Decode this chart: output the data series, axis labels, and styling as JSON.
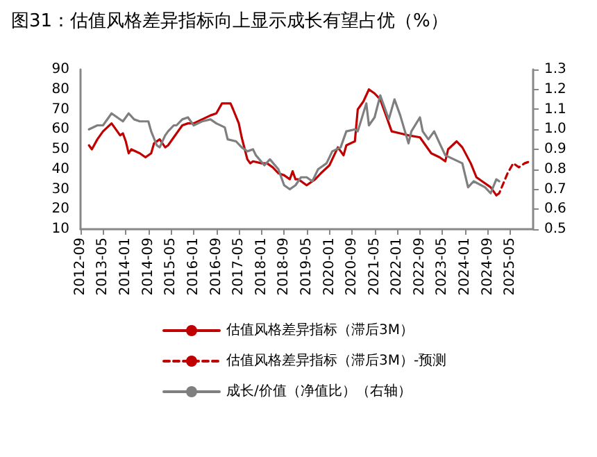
{
  "chart_data": {
    "type": "line",
    "title": "图31：估值风格差异指标向上显示成长有望占优（%）",
    "xlim": [
      "2012-09",
      "2026-01"
    ],
    "xticks": [
      "2012-09",
      "2013-05",
      "2014-01",
      "2014-09",
      "2015-05",
      "2016-01",
      "2016-09",
      "2017-05",
      "2018-01",
      "2018-09",
      "2019-05",
      "2020-01",
      "2020-09",
      "2021-05",
      "2022-01",
      "2022-09",
      "2023-05",
      "2024-01",
      "2024-09",
      "2025-05"
    ],
    "ylim": [
      10,
      90
    ],
    "yticks": [
      10,
      20,
      30,
      40,
      50,
      60,
      70,
      80,
      90
    ],
    "y2lim": [
      0.5,
      1.3
    ],
    "y2ticks": [
      0.5,
      0.6,
      0.7,
      0.8,
      0.9,
      {
        "value": 1,
        "label": "1.0"
      },
      1.1,
      1.2,
      1.3
    ],
    "grid": false,
    "legend": "bottom",
    "marker": "none",
    "series": [
      {
        "name": "估值风格差异指标（滞后3M）",
        "color": "#c00000",
        "line_style": "solid",
        "x": [
          "2012-12",
          "2013-01",
          "2013-03",
          "2013-05",
          "2013-08",
          "2013-09",
          "2013-11",
          "2013-12",
          "2014-01",
          "2014-02",
          "2014-03",
          "2014-06",
          "2014-08",
          "2014-10",
          "2014-11",
          "2015-01",
          "2015-03",
          "2015-04",
          "2015-06",
          "2015-09",
          "2015-11",
          "2016-01",
          "2016-04",
          "2016-07",
          "2016-09",
          "2016-11",
          "2017-02",
          "2017-03",
          "2017-05",
          "2017-06",
          "2017-08",
          "2017-09",
          "2017-10",
          "2018-01",
          "2018-03",
          "2018-05",
          "2018-07",
          "2018-09",
          "2018-11",
          "2018-12",
          "2019-01",
          "2019-02",
          "2019-05",
          "2019-08",
          "2019-10",
          "2020-01",
          "2020-04",
          "2020-06",
          "2020-07",
          "2020-10",
          "2020-11",
          "2021-01",
          "2021-03",
          "2021-05",
          "2021-07",
          "2021-09",
          "2021-11",
          "2022-02",
          "2022-05",
          "2022-09",
          "2023-01",
          "2023-04",
          "2023-06",
          "2023-07",
          "2023-10",
          "2023-12",
          "2024-03",
          "2024-05",
          "2024-07",
          "2024-10",
          "2024-12"
        ],
        "values": [
          52,
          50,
          55,
          59,
          63,
          61,
          57,
          58,
          54,
          48,
          50,
          48,
          46,
          48,
          53,
          55,
          51,
          52,
          56,
          62,
          63,
          63,
          65,
          67,
          68,
          73,
          73,
          70,
          63,
          56,
          45,
          43,
          44,
          43,
          43,
          41,
          38,
          37,
          35,
          39,
          35,
          35,
          32,
          35,
          38,
          42,
          51,
          47,
          52,
          54,
          70,
          74,
          80,
          78,
          75,
          67,
          59,
          58,
          57,
          56,
          48,
          46,
          44,
          50,
          54,
          51,
          43,
          36,
          34,
          31,
          27
        ]
      },
      {
        "name": "估值风格差异指标（滞后3M）-预测",
        "color": "#c00000",
        "line_style": "dashed",
        "x": [
          "2024-12",
          "2025-01",
          "2025-04",
          "2025-06",
          "2025-08",
          "2025-10",
          "2025-12"
        ],
        "values": [
          27,
          28,
          38,
          43,
          41,
          43,
          44
        ]
      },
      {
        "name": "成长/价值（净值比）（右轴）",
        "color": "#7f7f7f",
        "line_style": "solid",
        "axis": "y2",
        "x": [
          "2012-12",
          "2013-03",
          "2013-05",
          "2013-08",
          "2013-10",
          "2013-12",
          "2014-02",
          "2014-04",
          "2014-06",
          "2014-09",
          "2014-10",
          "2014-12",
          "2015-01",
          "2015-03",
          "2015-04",
          "2015-06",
          "2015-07",
          "2015-09",
          "2015-11",
          "2016-01",
          "2016-04",
          "2016-07",
          "2016-09",
          "2016-12",
          "2017-01",
          "2017-04",
          "2017-06",
          "2017-08",
          "2017-10",
          "2017-11",
          "2018-02",
          "2018-04",
          "2018-07",
          "2018-09",
          "2018-11",
          "2019-01",
          "2019-03",
          "2019-05",
          "2019-07",
          "2019-09",
          "2019-12",
          "2020-02",
          "2020-05",
          "2020-07",
          "2020-10",
          "2020-11",
          "2021-02",
          "2021-03",
          "2021-05",
          "2021-07",
          "2021-10",
          "2021-12",
          "2022-02",
          "2022-05",
          "2022-06",
          "2022-09",
          "2022-10",
          "2022-12",
          "2023-02",
          "2023-04",
          "2023-06",
          "2023-09",
          "2023-12",
          "2024-02",
          "2024-04",
          "2024-08",
          "2024-10",
          "2024-12",
          "2025-01"
        ],
        "values": [
          1.0,
          1.02,
          1.02,
          1.08,
          1.06,
          1.04,
          1.08,
          1.05,
          1.04,
          1.04,
          0.99,
          0.92,
          0.91,
          0.97,
          0.99,
          1.02,
          1.02,
          1.05,
          1.06,
          1.02,
          1.04,
          1.05,
          1.03,
          1.01,
          0.95,
          0.94,
          0.91,
          0.89,
          0.9,
          0.87,
          0.82,
          0.85,
          0.8,
          0.72,
          0.7,
          0.72,
          0.76,
          0.76,
          0.74,
          0.8,
          0.83,
          0.89,
          0.91,
          0.99,
          1.0,
          0.99,
          1.13,
          1.02,
          1.06,
          1.17,
          1.05,
          1.15,
          1.07,
          0.93,
          0.99,
          1.06,
          0.99,
          0.95,
          0.99,
          0.93,
          0.87,
          0.85,
          0.83,
          0.71,
          0.74,
          0.71,
          0.68,
          0.75,
          0.74
        ]
      }
    ]
  }
}
